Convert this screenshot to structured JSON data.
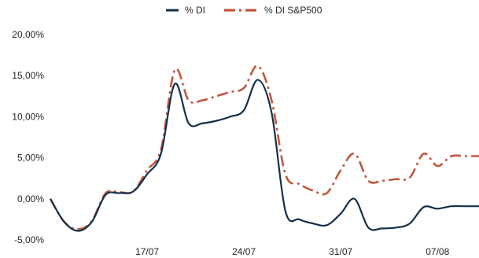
{
  "chart_data": {
    "type": "line",
    "title": "",
    "xlabel": "",
    "ylabel": "",
    "ylim": [
      -0.05,
      0.2
    ],
    "y_ticks": [
      -0.05,
      0.0,
      0.05,
      0.1,
      0.15,
      0.2
    ],
    "y_tick_labels": [
      "-5,00%",
      "0,00%",
      "5,00%",
      "10,00%",
      "15,00%",
      "20,00%"
    ],
    "x": [
      "10/07",
      "11/07",
      "12/07",
      "13/07",
      "14/07",
      "15/07",
      "16/07",
      "17/07",
      "18/07",
      "19/07",
      "20/07",
      "21/07",
      "22/07",
      "23/07",
      "24/07",
      "25/07",
      "26/07",
      "27/07",
      "28/07",
      "29/07",
      "30/07",
      "31/07",
      "01/08",
      "02/08",
      "03/08",
      "04/08",
      "05/08",
      "06/08",
      "07/08",
      "08/08",
      "09/08",
      "10/08"
    ],
    "x_tick_labels": [
      "17/07",
      "24/07",
      "31/07",
      "07/08"
    ],
    "legend_position": "top-center",
    "series": [
      {
        "name": "% DI",
        "color": "#13304a",
        "style": "solid",
        "values": [
          0.0,
          -0.028,
          -0.039,
          -0.028,
          0.005,
          0.007,
          0.009,
          0.03,
          0.055,
          0.14,
          0.092,
          0.092,
          0.095,
          0.1,
          0.108,
          0.145,
          0.105,
          -0.015,
          -0.025,
          -0.03,
          -0.032,
          -0.018,
          0.0,
          -0.035,
          -0.036,
          -0.035,
          -0.03,
          -0.01,
          -0.012,
          -0.009,
          -0.009,
          -0.009
        ]
      },
      {
        "name": "% DI S&P500",
        "color": "#c0573f",
        "style": "dashdot",
        "values": [
          0.0,
          -0.028,
          -0.037,
          -0.027,
          0.007,
          0.008,
          0.009,
          0.035,
          0.06,
          0.157,
          0.12,
          0.12,
          0.125,
          0.13,
          0.135,
          0.162,
          0.12,
          0.03,
          0.018,
          0.01,
          0.007,
          0.035,
          0.055,
          0.022,
          0.022,
          0.024,
          0.026,
          0.055,
          0.04,
          0.052,
          0.052,
          0.052
        ]
      }
    ]
  }
}
